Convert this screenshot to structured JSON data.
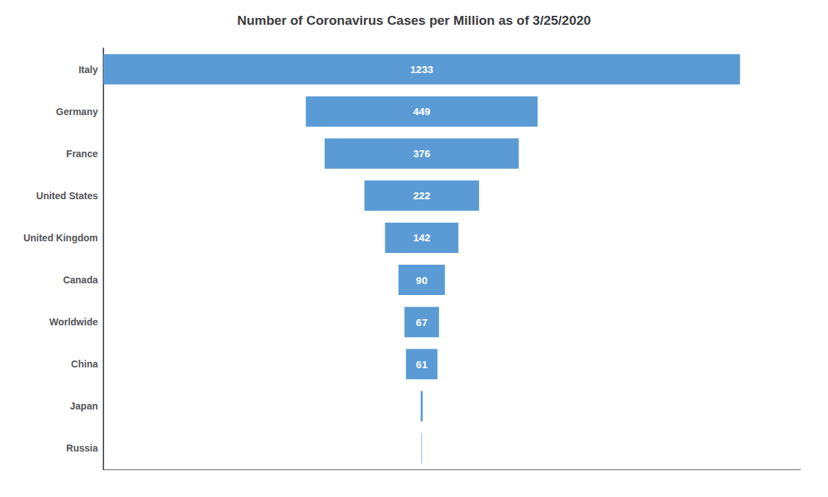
{
  "chart_data": {
    "type": "bar",
    "orientation": "horizontal",
    "title": "Number of Coronavirus Cases per Million as of 3/25/2020",
    "categories": [
      "Italy",
      "Germany",
      "France",
      "United States",
      "United Kingdom",
      "Canada",
      "Worldwide",
      "China",
      "Japan",
      "Russia"
    ],
    "values": [
      1233,
      449,
      376,
      222,
      142,
      90,
      67,
      61,
      4,
      1
    ],
    "value_labels": [
      "1233",
      "449",
      "376",
      "222",
      "142",
      "90",
      "67",
      "61",
      null,
      null
    ],
    "color": "#5B9BD5",
    "xlim": [
      0,
      1350
    ],
    "tick_labels": "y",
    "grid": false,
    "data_labels": true
  }
}
